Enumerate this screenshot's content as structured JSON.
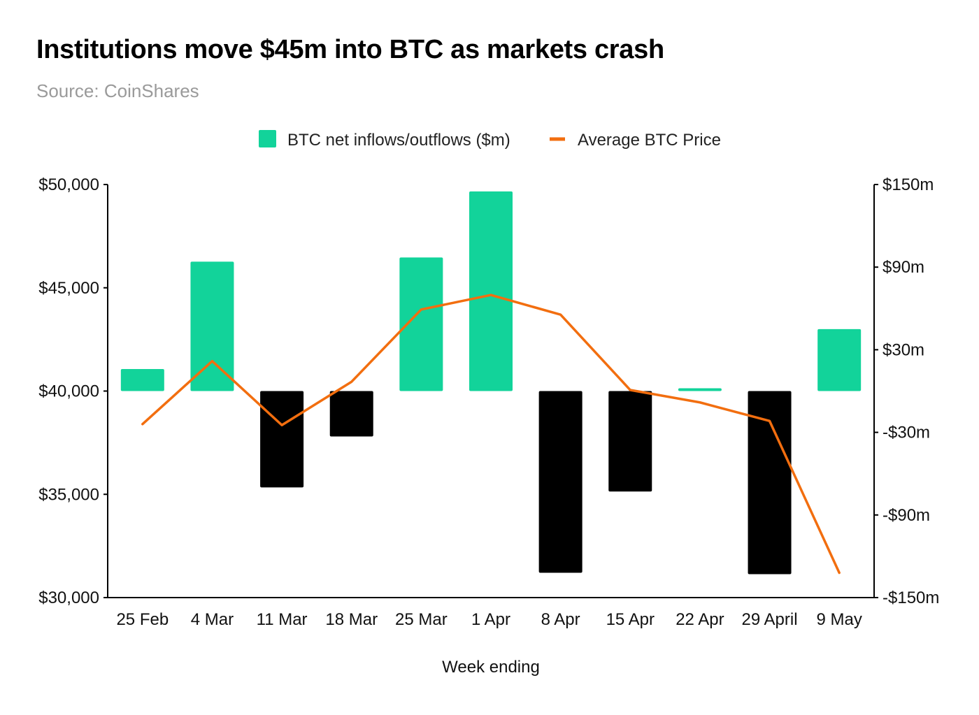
{
  "title": "Institutions move $45m into BTC as markets crash",
  "subtitle": "Source: CoinShares",
  "colors": {
    "inflow_bar": "#12d39a",
    "outflow_bar": "#000000",
    "price_line": "#f26e0f",
    "axis": "#000000",
    "subtitle": "#9a9a9a"
  },
  "chart_data": {
    "type": "bar",
    "combo": "bar+line",
    "categories": [
      "25 Feb",
      "4 Mar",
      "11 Mar",
      "18 Mar",
      "25 Mar",
      "1 Apr",
      "8 Apr",
      "15 Apr",
      "22 Apr",
      "29 April",
      "9 May"
    ],
    "xlabel": "Week ending",
    "series": [
      {
        "name": "BTC net inflows/outflows ($m)",
        "type": "bar",
        "axis": "right",
        "values": [
          16,
          94,
          -70,
          -33,
          97,
          145,
          -132,
          -73,
          2,
          -133,
          45
        ]
      },
      {
        "name": "Average BTC Price",
        "type": "line",
        "axis": "left",
        "values": [
          38400,
          41450,
          38350,
          40450,
          43950,
          44650,
          43700,
          40050,
          39450,
          38550,
          31200
        ]
      }
    ],
    "y_left": {
      "ylim": [
        30000,
        50000
      ],
      "ticks": [
        30000,
        35000,
        40000,
        45000,
        50000
      ],
      "tick_labels": [
        "$30,000",
        "$35,000",
        "$40,000",
        "$45,000",
        "$50,000"
      ]
    },
    "y_right": {
      "ylim": [
        -150,
        150
      ],
      "ticks": [
        -150,
        -90,
        -30,
        30,
        90,
        150
      ],
      "tick_labels": [
        "-$150m",
        "-$90m",
        "-$30m",
        "$30m",
        "$90m",
        "$150m"
      ]
    },
    "legend_position": "top-center",
    "grid": false
  }
}
